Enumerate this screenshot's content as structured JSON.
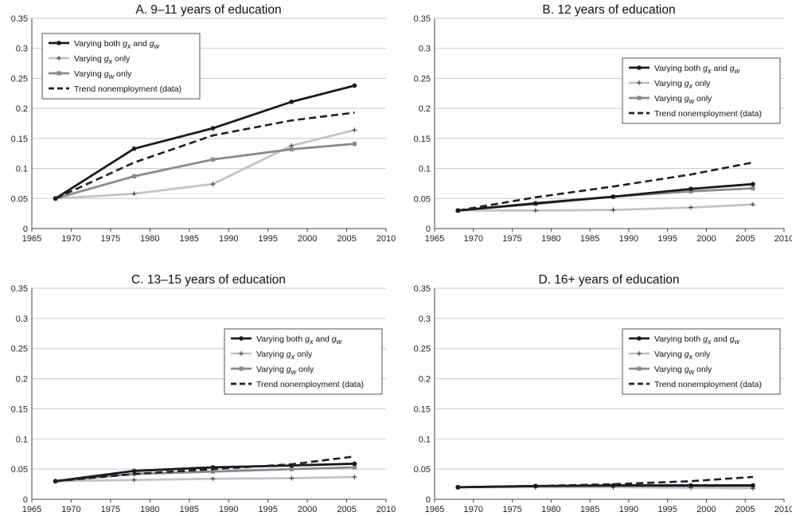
{
  "chart_data": [
    {
      "type": "line",
      "title": "A. 9–11 years of education",
      "xlim": [
        1965,
        2010
      ],
      "ylim": [
        0,
        0.35
      ],
      "xticks": [
        "1965",
        "1970",
        "1975",
        "1980",
        "1985",
        "1990",
        "1995",
        "2000",
        "2005",
        "2010"
      ],
      "yticks": [
        "0",
        "0.05",
        "0.1",
        "0.15",
        "0.2",
        "0.25",
        "0.3",
        "0.35"
      ],
      "grid": "horizontal",
      "legend_position": "top-left",
      "x": [
        1968,
        1978,
        1988,
        1998,
        2006
      ],
      "series": [
        {
          "name": "Varying both g_x and g_w",
          "values": [
            0.05,
            0.133,
            0.167,
            0.211,
            0.238
          ]
        },
        {
          "name": "Varying g_x only",
          "values": [
            0.05,
            0.058,
            0.074,
            0.138,
            0.164
          ]
        },
        {
          "name": "Varying g_w only",
          "values": [
            0.05,
            0.087,
            0.115,
            0.132,
            0.141
          ]
        },
        {
          "name": "Trend nonemployment (data)",
          "values": [
            0.05,
            0.11,
            0.155,
            0.18,
            0.193
          ]
        }
      ]
    },
    {
      "type": "line",
      "title": "B. 12 years of education",
      "xlim": [
        1965,
        2010
      ],
      "ylim": [
        0,
        0.35
      ],
      "xticks": [
        "1965",
        "1970",
        "1975",
        "1980",
        "1985",
        "1990",
        "1995",
        "2000",
        "2005",
        "2010"
      ],
      "yticks": [
        "0",
        "0.05",
        "0.1",
        "0.15",
        "0.2",
        "0.25",
        "0.3",
        "0.35"
      ],
      "grid": "horizontal",
      "legend_position": "top-right",
      "x": [
        1968,
        1978,
        1988,
        1998,
        2006
      ],
      "series": [
        {
          "name": "Varying both g_x and g_w",
          "values": [
            0.03,
            0.042,
            0.053,
            0.066,
            0.074
          ]
        },
        {
          "name": "Varying g_x only",
          "values": [
            0.03,
            0.03,
            0.031,
            0.035,
            0.04
          ]
        },
        {
          "name": "Varying g_w only",
          "values": [
            0.03,
            0.041,
            0.053,
            0.062,
            0.067
          ]
        },
        {
          "name": "Trend nonemployment (data)",
          "values": [
            0.03,
            0.052,
            0.07,
            0.09,
            0.11
          ]
        }
      ]
    },
    {
      "type": "line",
      "title": "C. 13–15 years of education",
      "xlim": [
        1965,
        2010
      ],
      "ylim": [
        0,
        0.35
      ],
      "xticks": [
        "1965",
        "1970",
        "1975",
        "1980",
        "1985",
        "1990",
        "1995",
        "2000",
        "2005",
        "2010"
      ],
      "yticks": [
        "0",
        "0.05",
        "0.1",
        "0.15",
        "0.2",
        "0.25",
        "0.3",
        "0.35"
      ],
      "grid": "horizontal",
      "legend_position": "right",
      "x": [
        1968,
        1978,
        1988,
        1998,
        2006
      ],
      "series": [
        {
          "name": "Varying both g_x and g_w",
          "values": [
            0.03,
            0.047,
            0.053,
            0.056,
            0.059
          ]
        },
        {
          "name": "Varying g_x only",
          "values": [
            0.03,
            0.032,
            0.034,
            0.035,
            0.037
          ]
        },
        {
          "name": "Varying g_w only",
          "values": [
            0.03,
            0.042,
            0.046,
            0.05,
            0.053
          ]
        },
        {
          "name": "Trend nonemployment (data)",
          "values": [
            0.03,
            0.042,
            0.05,
            0.058,
            0.071
          ]
        }
      ]
    },
    {
      "type": "line",
      "title": "D. 16+ years of education",
      "xlim": [
        1965,
        2010
      ],
      "ylim": [
        0,
        0.35
      ],
      "xticks": [
        "1965",
        "1970",
        "1975",
        "1980",
        "1985",
        "1990",
        "1995",
        "2000",
        "2005",
        "2010"
      ],
      "yticks": [
        "0",
        "0.05",
        "0.1",
        "0.15",
        "0.2",
        "0.25",
        "0.3",
        "0.35"
      ],
      "grid": "horizontal",
      "legend_position": "right",
      "x": [
        1968,
        1978,
        1988,
        1998,
        2006
      ],
      "series": [
        {
          "name": "Varying both g_x and g_w",
          "values": [
            0.02,
            0.022,
            0.023,
            0.023,
            0.023
          ]
        },
        {
          "name": "Varying g_x only",
          "values": [
            0.02,
            0.02,
            0.02,
            0.019,
            0.018
          ]
        },
        {
          "name": "Varying g_w only",
          "values": [
            0.02,
            0.022,
            0.022,
            0.022,
            0.022
          ]
        },
        {
          "name": "Trend nonemployment (data)",
          "values": [
            0.02,
            0.022,
            0.025,
            0.03,
            0.037
          ]
        }
      ]
    }
  ],
  "legend_items": [
    {
      "pre": "Varying both ",
      "v1": "g",
      "s1": "x",
      "mid": " and ",
      "v2": "g",
      "s2": "w",
      "post": ""
    },
    {
      "pre": "Varying ",
      "v1": "g",
      "s1": "x",
      "mid": " only",
      "v2": "",
      "s2": "",
      "post": ""
    },
    {
      "pre": "Varying ",
      "v1": "g",
      "s1": "w",
      "mid": " only",
      "v2": "",
      "s2": "",
      "post": ""
    },
    {
      "pre": "Trend nonemployment (data)",
      "v1": "",
      "s1": "",
      "mid": "",
      "v2": "",
      "s2": "",
      "post": ""
    }
  ],
  "series_styles": [
    {
      "color": "#1a1a1a",
      "marker": "circle",
      "dash": ""
    },
    {
      "color": "#c4c4c4",
      "marker": "plus",
      "dash": ""
    },
    {
      "color": "#8a8a8a",
      "marker": "square",
      "dash": ""
    },
    {
      "color": "#1f1f2e",
      "marker": "none",
      "dash": "9,5"
    }
  ]
}
